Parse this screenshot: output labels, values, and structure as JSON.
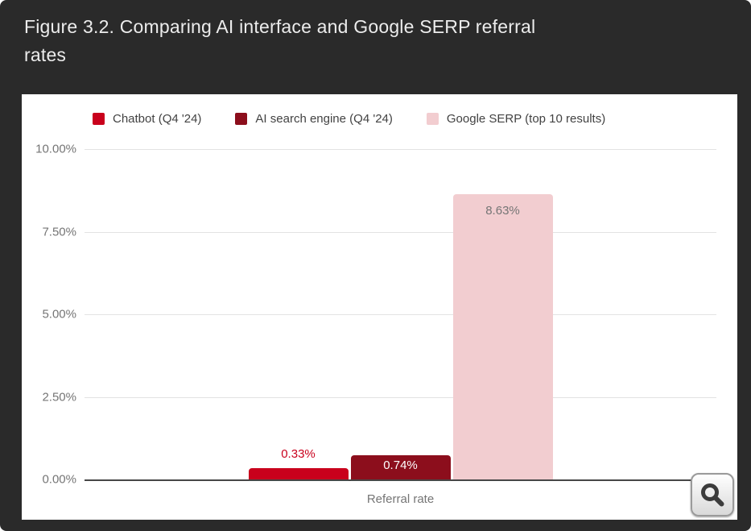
{
  "header": {
    "title": "Figure 3.2. Comparing AI interface and Google SERP referral rates"
  },
  "chart_data": {
    "type": "bar",
    "title": "Figure 3.2. Comparing AI interface and Google SERP referral rates",
    "categories": [
      "Referral rate"
    ],
    "series": [
      {
        "name": "Chatbot (Q4 '24)",
        "values": [
          0.33
        ],
        "label": "0.33%",
        "color": "#c9001c",
        "label_color": "#c9001c",
        "label_position": "above"
      },
      {
        "name": "AI search engine (Q4 '24)",
        "values": [
          0.74
        ],
        "label": "0.74%",
        "color": "#8c0e1c",
        "label_color": "#ffffff",
        "label_position": "inside"
      },
      {
        "name": "Google SERP (top 10 results)",
        "values": [
          8.63
        ],
        "label": "8.63%",
        "color": "#f2cdd0",
        "label_color": "#757575",
        "label_position": "inside"
      }
    ],
    "xlabel": "Referral rate",
    "ylabel": "",
    "ylim": [
      0,
      10
    ],
    "yticks": [
      {
        "value": 10,
        "label": "10.00%"
      },
      {
        "value": 7.5,
        "label": "7.50%"
      },
      {
        "value": 5,
        "label": "5.00%"
      },
      {
        "value": 2.5,
        "label": "2.50%"
      },
      {
        "value": 0,
        "label": "0.00%"
      }
    ],
    "grid": true,
    "legend_position": "top"
  },
  "controls": {
    "zoom_button_icon": "magnifier-icon"
  },
  "colors": {
    "frame_background": "#2a2a2a",
    "panel_background": "#ffffff",
    "gridline": "#e3e3e3",
    "axis_line": "#474747",
    "tick_text": "#757575",
    "legend_text": "#424242",
    "title_text": "#ececec"
  }
}
